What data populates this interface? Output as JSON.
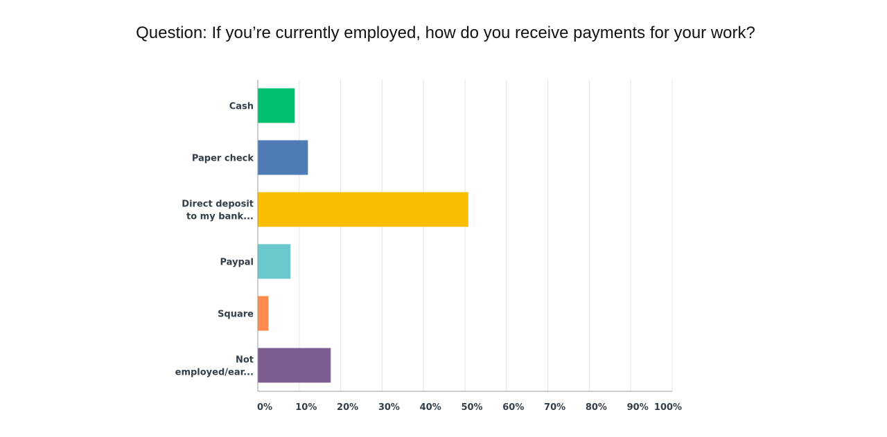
{
  "title": "Question: If you’re currently employed, how do you receive payments for your work?",
  "chart_data": {
    "type": "bar",
    "orientation": "horizontal",
    "title": "Question: If you’re currently employed, how do you receive payments for your work?",
    "xlabel": "",
    "ylabel": "",
    "xlim": [
      0,
      100
    ],
    "grid": true,
    "categories": [
      [
        "Cash"
      ],
      [
        "Paper check"
      ],
      [
        "Direct deposit",
        "to my bank..."
      ],
      [
        "Paypal"
      ],
      [
        "Square"
      ],
      [
        "Not",
        "employed/ear..."
      ]
    ],
    "values": [
      8.9,
      12.1,
      50.8,
      7.9,
      2.6,
      17.6
    ],
    "colors": [
      "#00bf6f",
      "#507cb6",
      "#f9be00",
      "#6bc8cd",
      "#ff8b4f",
      "#7d5e90"
    ],
    "x_ticks": [
      "0%",
      "10%",
      "20%",
      "30%",
      "40%",
      "50%",
      "60%",
      "70%",
      "80%",
      "90%",
      "100%"
    ],
    "value_unit": "%"
  }
}
